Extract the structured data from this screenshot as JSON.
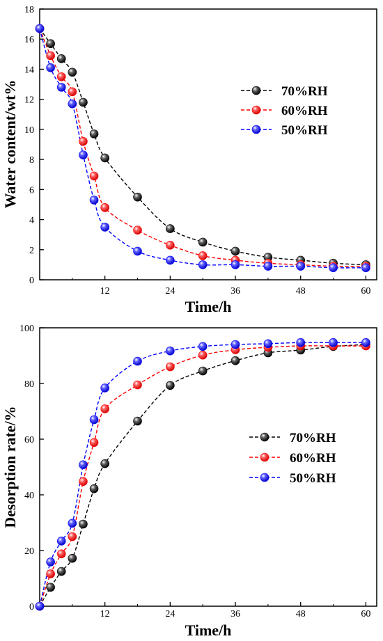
{
  "chart_data": [
    {
      "type": "line",
      "xlabel": "Time/h",
      "ylabel": "Water content/wt%",
      "xlim": [
        0,
        62
      ],
      "ylim": [
        0,
        18
      ],
      "xticks": [
        "12",
        "24",
        "36",
        "48",
        "60"
      ],
      "yticks": [
        "0",
        "2",
        "4",
        "6",
        "8",
        "10",
        "12",
        "14",
        "16",
        "18"
      ],
      "legend_position": "right",
      "series": [
        {
          "name": "70%RH",
          "color": "#000000",
          "x": [
            0,
            2,
            4,
            6,
            8,
            10,
            12,
            18,
            24,
            30,
            36,
            42,
            48,
            54,
            60
          ],
          "y": [
            16.7,
            15.7,
            14.7,
            13.8,
            11.8,
            9.7,
            8.1,
            5.5,
            3.4,
            2.5,
            1.9,
            1.5,
            1.3,
            1.1,
            1.0
          ]
        },
        {
          "name": "60%RH",
          "color": "#ff0000",
          "x": [
            0,
            2,
            4,
            6,
            8,
            10,
            12,
            18,
            24,
            30,
            36,
            42,
            48,
            54,
            60
          ],
          "y": [
            16.7,
            14.9,
            13.5,
            12.5,
            9.2,
            6.9,
            4.8,
            3.3,
            2.3,
            1.6,
            1.3,
            1.1,
            1.0,
            0.9,
            0.9
          ]
        },
        {
          "name": "50%RH",
          "color": "#0000ff",
          "x": [
            0,
            2,
            4,
            6,
            8,
            10,
            12,
            18,
            24,
            30,
            36,
            42,
            48,
            54,
            60
          ],
          "y": [
            16.7,
            14.1,
            12.8,
            11.7,
            8.3,
            5.3,
            3.5,
            1.9,
            1.3,
            1.0,
            1.0,
            0.9,
            0.9,
            0.8,
            0.8
          ]
        }
      ]
    },
    {
      "type": "line",
      "xlabel": "Time/h",
      "ylabel": "Desorption rate/%",
      "xlim": [
        0,
        62
      ],
      "ylim": [
        0,
        100
      ],
      "xticks": [
        "12",
        "24",
        "36",
        "48",
        "60"
      ],
      "yticks": [
        "0",
        "20",
        "40",
        "60",
        "80",
        "100"
      ],
      "legend_position": "right",
      "series": [
        {
          "name": "70%RH",
          "color": "#000000",
          "x": [
            0,
            2,
            4,
            6,
            8,
            10,
            12,
            18,
            24,
            30,
            36,
            42,
            48,
            54,
            60
          ],
          "y": [
            0,
            6.8,
            12.5,
            17.2,
            29.5,
            42.2,
            51.2,
            66.5,
            79.3,
            84.5,
            88.2,
            91.0,
            92.0,
            93.3,
            94.0
          ]
        },
        {
          "name": "60%RH",
          "color": "#ff0000",
          "x": [
            0,
            2,
            4,
            6,
            8,
            10,
            12,
            18,
            24,
            30,
            36,
            42,
            48,
            54,
            60
          ],
          "y": [
            0,
            11.6,
            18.8,
            25.0,
            44.8,
            58.8,
            70.9,
            79.5,
            86.0,
            90.2,
            92.1,
            93.0,
            93.5,
            93.5,
            93.5
          ]
        },
        {
          "name": "50%RH",
          "color": "#0000ff",
          "x": [
            0,
            2,
            4,
            6,
            8,
            10,
            12,
            18,
            24,
            30,
            36,
            42,
            48,
            54,
            60
          ],
          "y": [
            0,
            15.9,
            23.4,
            29.8,
            50.8,
            67.0,
            78.4,
            88.0,
            91.7,
            93.3,
            94.0,
            94.3,
            94.7,
            94.7,
            94.7
          ]
        }
      ]
    }
  ]
}
